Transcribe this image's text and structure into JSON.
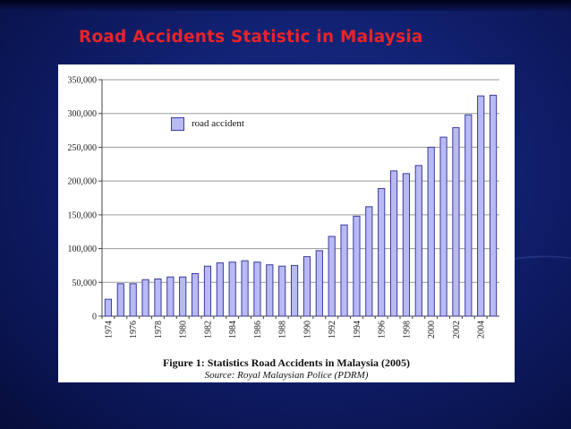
{
  "slide": {
    "title": "Road Accidents Statistic in Malaysia"
  },
  "colors": {
    "title": "#e8232a",
    "bar_fill": "#b9b9f5",
    "bar_stroke": "#3b3b9a",
    "background": "#11206f"
  },
  "chart_data": {
    "type": "bar",
    "title": "",
    "xlabel": "",
    "ylabel": "",
    "ylim": [
      0,
      350000
    ],
    "yticks": [
      0,
      50000,
      100000,
      150000,
      200000,
      250000,
      300000,
      350000
    ],
    "ytick_labels": [
      "0",
      "50,000",
      "100,000",
      "150,000",
      "200,000",
      "250,000",
      "300,000",
      "350,000"
    ],
    "categories": [
      "1974",
      "1975",
      "1976",
      "1977",
      "1978",
      "1979",
      "1980",
      "1981",
      "1982",
      "1983",
      "1984",
      "1985",
      "1986",
      "1987",
      "1988",
      "1989",
      "1990",
      "1991",
      "1992",
      "1993",
      "1994",
      "1995",
      "1996",
      "1997",
      "1998",
      "1999",
      "2000",
      "2001",
      "2002",
      "2003",
      "2004",
      "2005"
    ],
    "xtick_labels_shown": [
      "1974",
      "1976",
      "1978",
      "1980",
      "1982",
      "1984",
      "1986",
      "1988",
      "1990",
      "1992",
      "1994",
      "1996",
      "1998",
      "2000",
      "2002",
      "2004"
    ],
    "series": [
      {
        "name": "road accident",
        "values": [
          25000,
          48000,
          48000,
          54000,
          55000,
          58000,
          58000,
          63000,
          74000,
          79000,
          80000,
          82000,
          80000,
          76000,
          74000,
          75000,
          88000,
          97000,
          118000,
          135000,
          148000,
          162000,
          189000,
          215000,
          211000,
          223000,
          250000,
          265000,
          279000,
          298000,
          326000,
          327000
        ]
      }
    ],
    "grid": "horizontal",
    "legend": "top-left"
  },
  "figure": {
    "caption": "Figure 1: Statistics Road Accidents in Malaysia (2005)",
    "source": "Source: Royal Malaysian Police (PDRM)"
  }
}
